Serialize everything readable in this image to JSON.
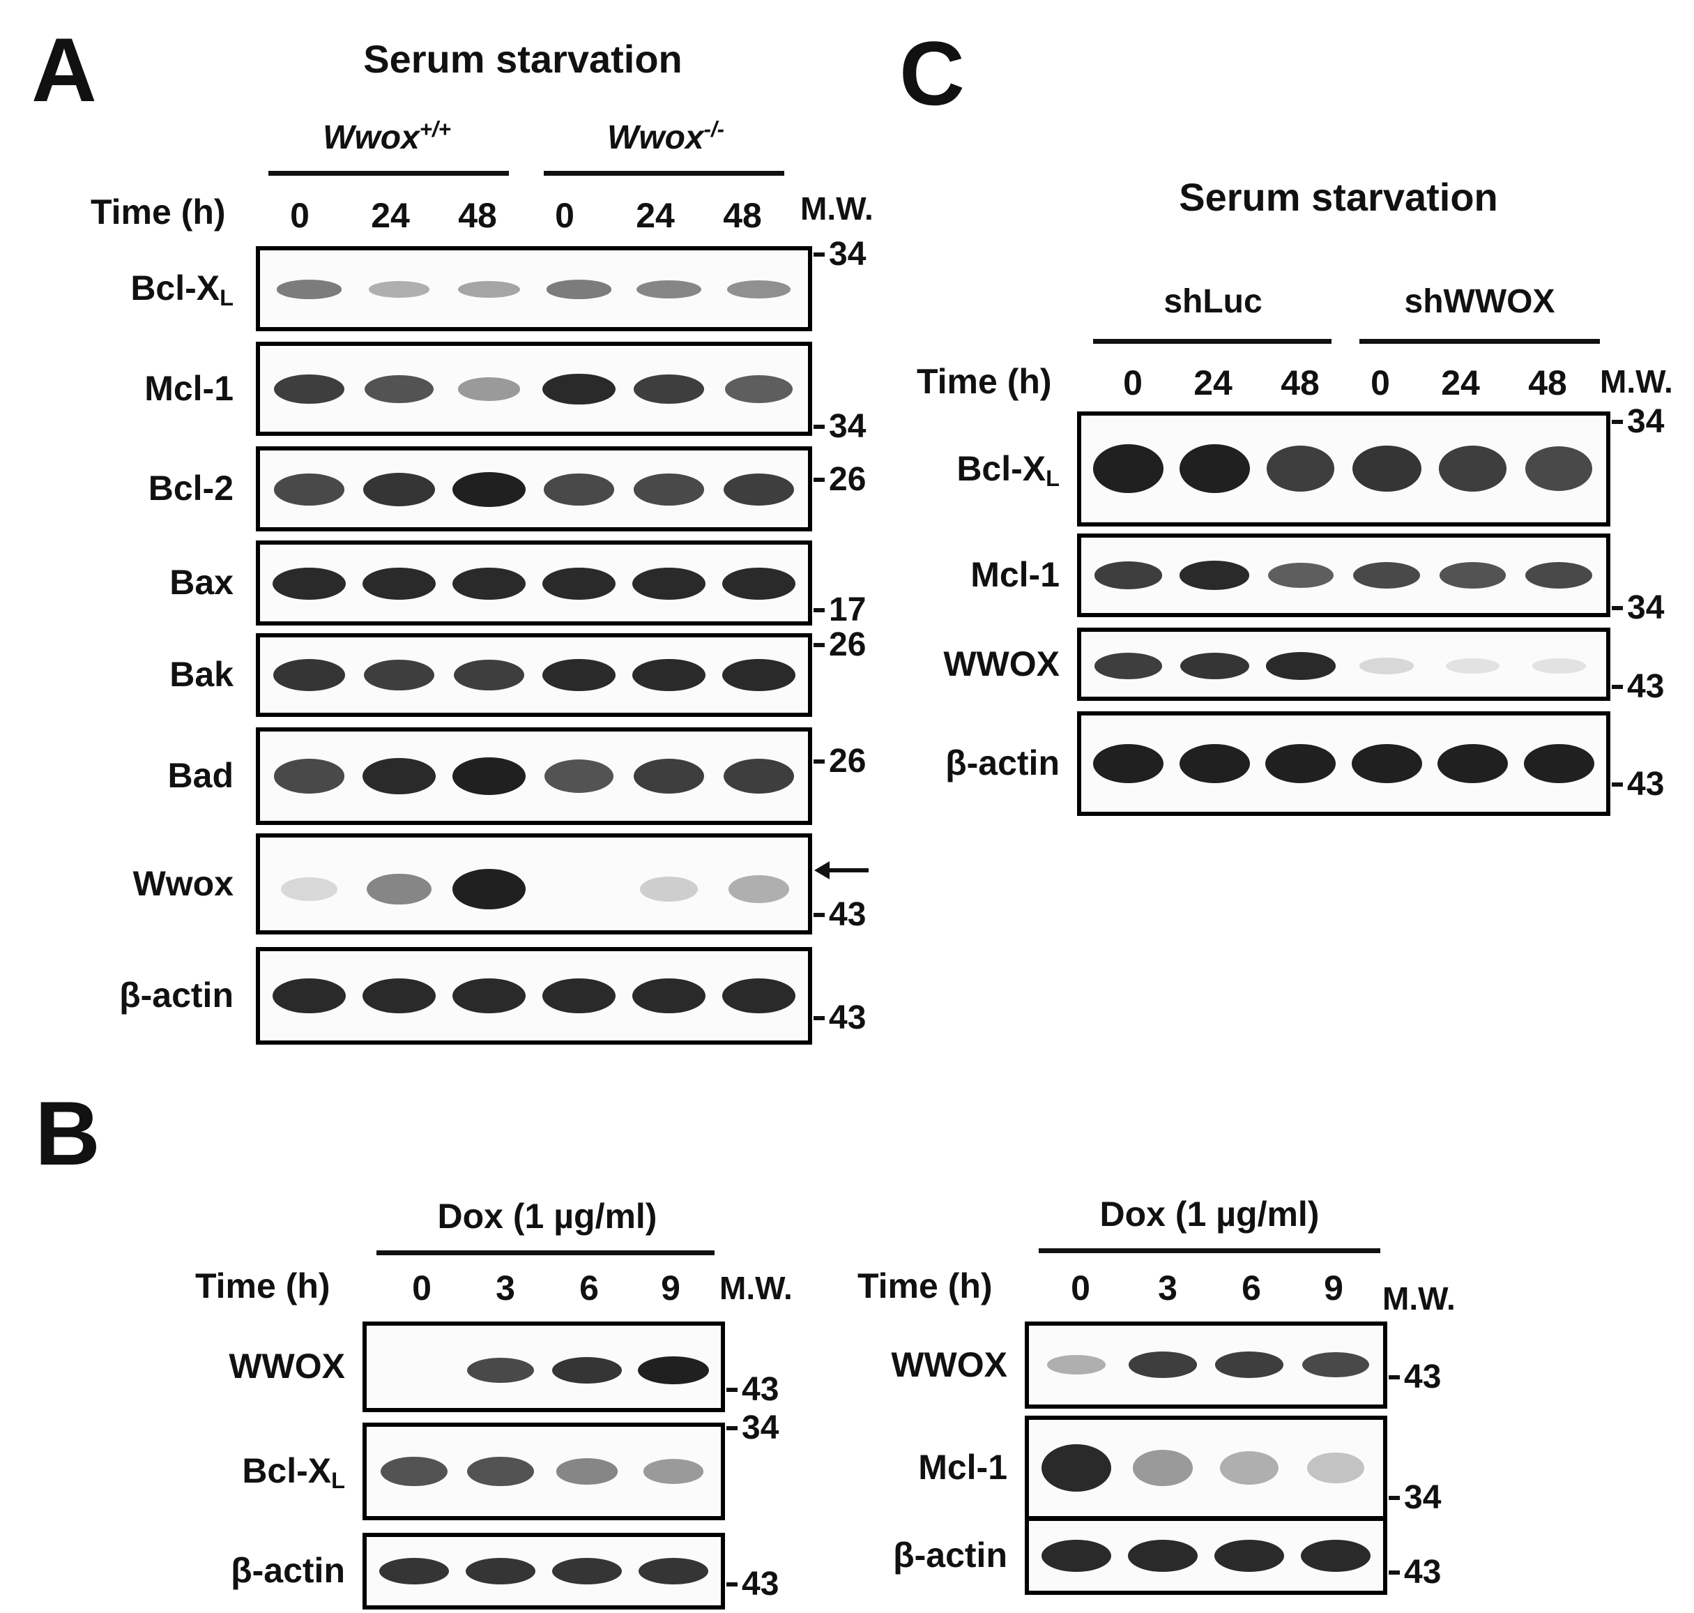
{
  "panel_a": {
    "letter": "A",
    "title": "Serum starvation",
    "group_wt": "Wwox",
    "group_wt_sup": "+/+",
    "group_ko": "Wwox",
    "group_ko_sup": "-/-",
    "time_header": "Time (h)",
    "times": [
      "0",
      "24",
      "48",
      "0",
      "24",
      "48"
    ],
    "mw_header": "M.W.",
    "rows": [
      {
        "label": "Bcl-X",
        "sub": "L",
        "mw": [
          "34"
        ],
        "intensity": [
          0.55,
          0.3,
          0.35,
          0.55,
          0.5,
          0.45
        ]
      },
      {
        "label": "Mcl-1",
        "sub": "",
        "mw": [
          "34"
        ],
        "intensity": [
          0.85,
          0.75,
          0.4,
          0.95,
          0.85,
          0.7
        ]
      },
      {
        "label": "Bcl-2",
        "sub": "",
        "mw": [
          "26"
        ],
        "intensity": [
          0.8,
          0.9,
          1.0,
          0.8,
          0.8,
          0.85
        ]
      },
      {
        "label": "Bax",
        "sub": "",
        "mw": [
          "17"
        ],
        "intensity": [
          0.95,
          0.95,
          0.95,
          0.95,
          0.95,
          0.95
        ]
      },
      {
        "label": "Bak",
        "sub": "",
        "mw": [
          "26"
        ],
        "intensity": [
          0.9,
          0.85,
          0.85,
          0.95,
          0.95,
          0.95
        ]
      },
      {
        "label": "Bad",
        "sub": "",
        "mw": [
          "26"
        ],
        "intensity": [
          0.8,
          0.95,
          1.0,
          0.75,
          0.85,
          0.85
        ]
      },
      {
        "label": "Wwox",
        "sub": "",
        "mw": [
          "43"
        ],
        "intensity": [
          0.1,
          0.5,
          1.0,
          0.0,
          0.15,
          0.3
        ]
      },
      {
        "label": "β-actin",
        "sub": "",
        "mw": [
          "43"
        ],
        "intensity": [
          0.95,
          0.95,
          0.95,
          0.95,
          0.95,
          0.95
        ]
      }
    ],
    "mw_labels": [
      "34",
      "34",
      "26",
      "17",
      "26",
      "26",
      "43",
      "43"
    ]
  },
  "panel_b": {
    "letter": "B",
    "left": {
      "treatment": "Dox (1 µg/ml)",
      "time_header": "Time (h)",
      "times": [
        "0",
        "3",
        "6",
        "9"
      ],
      "mw_header": "M.W.",
      "rows": [
        {
          "label": "WWOX",
          "sub": "",
          "intensity": [
            0.0,
            0.8,
            0.9,
            1.0
          ]
        },
        {
          "label": "Bcl-X",
          "sub": "L",
          "intensity": [
            0.75,
            0.75,
            0.5,
            0.4
          ]
        },
        {
          "label": "β-actin",
          "sub": "",
          "intensity": [
            0.9,
            0.9,
            0.9,
            0.9
          ]
        }
      ],
      "mw_labels": [
        "43",
        "34",
        "43"
      ]
    },
    "right": {
      "treatment": "Dox (1 µg/ml)",
      "time_header": "Time (h)",
      "times": [
        "0",
        "3",
        "6",
        "9"
      ],
      "mw_header": "M.W.",
      "rows": [
        {
          "label": "WWOX",
          "sub": "",
          "intensity": [
            0.3,
            0.85,
            0.85,
            0.8
          ]
        },
        {
          "label": "Mcl-1",
          "sub": "",
          "intensity": [
            0.95,
            0.4,
            0.3,
            0.2
          ]
        },
        {
          "label": "β-actin",
          "sub": "",
          "intensity": [
            0.95,
            0.95,
            0.95,
            0.95
          ]
        }
      ],
      "mw_labels": [
        "43",
        "34",
        "43"
      ]
    }
  },
  "panel_c": {
    "letter": "C",
    "title": "Serum starvation",
    "group_1": "shLuc",
    "group_2": "shWWOX",
    "time_header": "Time (h)",
    "times": [
      "0",
      "24",
      "48",
      "0",
      "24",
      "48"
    ],
    "mw_header": "M.W.",
    "rows": [
      {
        "label": "Bcl-X",
        "sub": "L",
        "intensity": [
          1.0,
          1.0,
          0.85,
          0.9,
          0.85,
          0.8
        ]
      },
      {
        "label": "Mcl-1",
        "sub": "",
        "intensity": [
          0.85,
          0.95,
          0.7,
          0.8,
          0.75,
          0.8
        ]
      },
      {
        "label": "WWOX",
        "sub": "",
        "intensity": [
          0.85,
          0.9,
          0.95,
          0.1,
          0.05,
          0.05
        ]
      },
      {
        "label": "β-actin",
        "sub": "",
        "intensity": [
          1.0,
          1.0,
          1.0,
          1.0,
          1.0,
          1.0
        ]
      }
    ],
    "mw_labels": [
      "34",
      "34",
      "43",
      "43"
    ]
  }
}
